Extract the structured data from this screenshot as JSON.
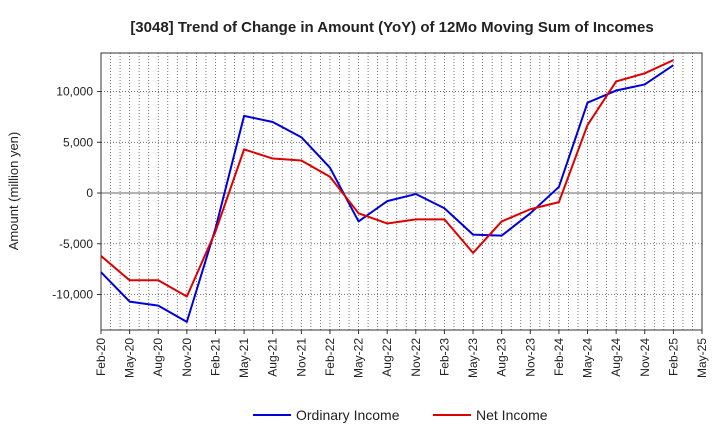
{
  "chart_data": {
    "type": "line",
    "title": "[3048]  Trend of Change in Amount (YoY) of 12Mo Moving Sum of Incomes",
    "xlabel": "",
    "ylabel": "Amount (million yen)",
    "ylim": [
      -13500,
      13800
    ],
    "yticks": [
      10000,
      5000,
      0,
      -5000,
      -10000
    ],
    "ytick_labels": [
      "10,000",
      "5,000",
      "0",
      "-5,000",
      "-10,000"
    ],
    "x": [
      "Feb-20",
      "May-20",
      "Aug-20",
      "Nov-20",
      "Feb-21",
      "May-21",
      "Aug-21",
      "Nov-21",
      "Feb-22",
      "May-22",
      "Aug-22",
      "Nov-22",
      "Feb-23",
      "May-23",
      "Aug-23",
      "Nov-23",
      "Feb-24",
      "May-24",
      "Aug-24",
      "Nov-24",
      "Feb-25",
      "May-25"
    ],
    "grid": true,
    "legend_position": "bottom",
    "series": [
      {
        "name": "Ordinary Income",
        "color": "#0000dd",
        "values": [
          -7800,
          -10700,
          -11100,
          -12700,
          -3500,
          7600,
          7000,
          5500,
          2500,
          -2800,
          -800,
          -100,
          -1500,
          -4100,
          -4200,
          -2000,
          600,
          8900,
          10100,
          10700,
          12600,
          null
        ]
      },
      {
        "name": "Net Income",
        "color": "#dd0000",
        "values": [
          -6200,
          -8600,
          -8600,
          -10200,
          -3800,
          4300,
          3400,
          3200,
          1600,
          -2000,
          -3000,
          -2600,
          -2600,
          -5900,
          -2800,
          -1600,
          -900,
          6700,
          11000,
          11800,
          13100,
          null
        ]
      }
    ]
  }
}
